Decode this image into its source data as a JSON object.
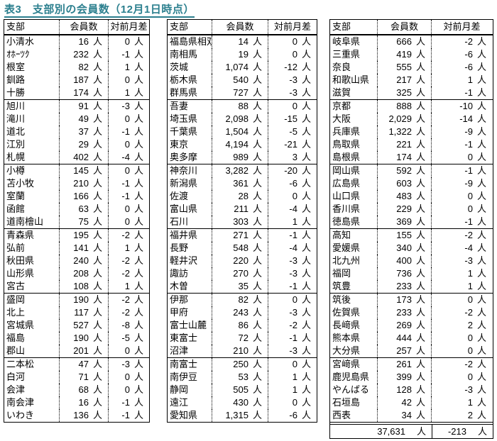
{
  "title": "表3　支部別の会員数（12月1日時点）",
  "unit": "人",
  "colors": {
    "title": "#2b7f8e",
    "border": "#000000",
    "background": "#ffffff"
  },
  "columns": {
    "branch": "支部",
    "members": "会員数",
    "diff": "対前月差"
  },
  "tables": [
    {
      "groups": [
        [
          [
            "小清水",
            "16",
            "0"
          ],
          [
            "ｵﾎｰﾂｸ",
            "232",
            "-1"
          ],
          [
            "根室",
            "82",
            "1"
          ],
          [
            "釧路",
            "187",
            "0"
          ],
          [
            "十勝",
            "174",
            "1"
          ]
        ],
        [
          [
            "旭川",
            "91",
            "-3"
          ],
          [
            "滝川",
            "49",
            "0"
          ],
          [
            "道北",
            "37",
            "-1"
          ],
          [
            "江別",
            "29",
            "0"
          ],
          [
            "札幌",
            "402",
            "-4"
          ]
        ],
        [
          [
            "小樽",
            "145",
            "0"
          ],
          [
            "苫小牧",
            "210",
            "-1"
          ],
          [
            "室蘭",
            "166",
            "-1"
          ],
          [
            "函館",
            "63",
            "0"
          ],
          [
            "道南檜山",
            "75",
            "0"
          ]
        ],
        [
          [
            "青森県",
            "195",
            "-2"
          ],
          [
            "弘前",
            "141",
            "1"
          ],
          [
            "秋田県",
            "240",
            "-2"
          ],
          [
            "山形県",
            "208",
            "-2"
          ],
          [
            "宮古",
            "108",
            "1"
          ]
        ],
        [
          [
            "盛岡",
            "190",
            "-2"
          ],
          [
            "北上",
            "117",
            "-2"
          ],
          [
            "宮城県",
            "527",
            "-8"
          ],
          [
            "福島",
            "190",
            "-5"
          ],
          [
            "郡山",
            "201",
            "0"
          ]
        ],
        [
          [
            "二本松",
            "47",
            "-3"
          ],
          [
            "白河",
            "71",
            "0"
          ],
          [
            "会津",
            "68",
            "0"
          ],
          [
            "南会津",
            "16",
            "-1"
          ],
          [
            "いわき",
            "136",
            "-1"
          ]
        ]
      ]
    },
    {
      "groups": [
        [
          [
            "福島県相双",
            "14",
            "0"
          ],
          [
            "南相馬",
            "19",
            "0"
          ],
          [
            "茨城",
            "1,074",
            "-12"
          ],
          [
            "栃木県",
            "540",
            "-3"
          ],
          [
            "群馬県",
            "727",
            "-3"
          ]
        ],
        [
          [
            "吾妻",
            "88",
            "0"
          ],
          [
            "埼玉県",
            "2,098",
            "-15"
          ],
          [
            "千葉県",
            "1,504",
            "-5"
          ],
          [
            "東京",
            "4,194",
            "-21"
          ],
          [
            "奥多摩",
            "989",
            "3"
          ]
        ],
        [
          [
            "神奈川",
            "3,282",
            "-20"
          ],
          [
            "新潟県",
            "361",
            "-6"
          ],
          [
            "佐渡",
            "28",
            "0"
          ],
          [
            "富山県",
            "211",
            "-4"
          ],
          [
            "石川",
            "303",
            "1"
          ]
        ],
        [
          [
            "福井県",
            "271",
            "-1"
          ],
          [
            "長野",
            "548",
            "-4"
          ],
          [
            "軽井沢",
            "220",
            "-3"
          ],
          [
            "諏訪",
            "270",
            "-3"
          ],
          [
            "木曽",
            "35",
            "-1"
          ]
        ],
        [
          [
            "伊那",
            "82",
            "0"
          ],
          [
            "甲府",
            "243",
            "-3"
          ],
          [
            "富士山麓",
            "86",
            "-2"
          ],
          [
            "東富士",
            "72",
            "-1"
          ],
          [
            "沼津",
            "210",
            "-3"
          ]
        ],
        [
          [
            "南富士",
            "250",
            "0"
          ],
          [
            "南伊豆",
            "53",
            "1"
          ],
          [
            "静岡",
            "505",
            "1"
          ],
          [
            "遠江",
            "430",
            "0"
          ],
          [
            "愛知県",
            "1,315",
            "-6"
          ]
        ]
      ]
    },
    {
      "groups": [
        [
          [
            "岐阜県",
            "666",
            "-2"
          ],
          [
            "三重県",
            "419",
            "-6"
          ],
          [
            "奈良",
            "555",
            "-6"
          ],
          [
            "和歌山県",
            "217",
            "1"
          ],
          [
            "滋賀",
            "325",
            "-1"
          ]
        ],
        [
          [
            "京都",
            "888",
            "-10"
          ],
          [
            "大阪",
            "2,029",
            "-14"
          ],
          [
            "兵庫県",
            "1,322",
            "-9"
          ],
          [
            "鳥取県",
            "221",
            "-1"
          ],
          [
            "島根県",
            "174",
            "0"
          ]
        ],
        [
          [
            "岡山県",
            "592",
            "-1"
          ],
          [
            "広島県",
            "603",
            "-9"
          ],
          [
            "山口県",
            "483",
            "0"
          ],
          [
            "香川県",
            "229",
            "0"
          ],
          [
            "徳島県",
            "369",
            "-1"
          ]
        ],
        [
          [
            "高知",
            "155",
            "-2"
          ],
          [
            "愛媛県",
            "340",
            "-4"
          ],
          [
            "北九州",
            "400",
            "-3"
          ],
          [
            "福岡",
            "736",
            "1"
          ],
          [
            "筑豊",
            "233",
            "1"
          ]
        ],
        [
          [
            "筑後",
            "173",
            "0"
          ],
          [
            "佐賀県",
            "233",
            "-2"
          ],
          [
            "長﨑県",
            "269",
            "2"
          ],
          [
            "熊本県",
            "444",
            "0"
          ],
          [
            "大分県",
            "257",
            "0"
          ]
        ],
        [
          [
            "宮﨑県",
            "261",
            "-2"
          ],
          [
            "鹿児島県",
            "399",
            "0"
          ],
          [
            "やんばる",
            "128",
            "-3"
          ],
          [
            "石垣島",
            "42",
            "1"
          ],
          [
            "西表",
            "34",
            "2"
          ]
        ]
      ]
    }
  ],
  "total_row": {
    "members": "37,631",
    "diff": "-213"
  }
}
